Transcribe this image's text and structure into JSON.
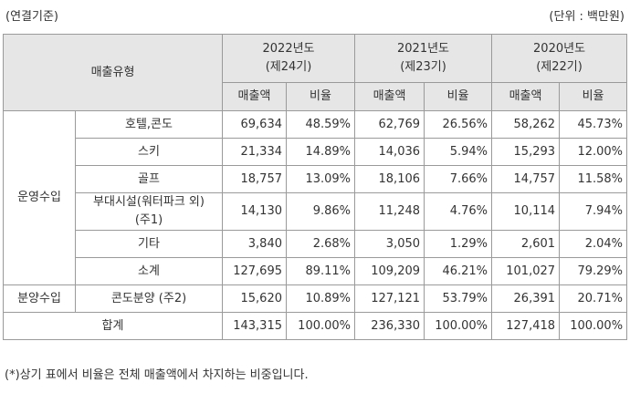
{
  "header": {
    "basis": "(연결기준)",
    "unit": "(단위 : 백만원)"
  },
  "table": {
    "type_label": "매출유형",
    "years": [
      {
        "year": "2022년도",
        "period": "(제24기)",
        "columns": [
          "매출액",
          "비율"
        ]
      },
      {
        "year": "2021년도",
        "period": "(제23기)",
        "columns": [
          "매출액",
          "비율"
        ]
      },
      {
        "year": "2020년도",
        "period": "(제22기)",
        "columns": [
          "매출액",
          "비율"
        ]
      }
    ],
    "groups": [
      {
        "name": "운영수입",
        "rows": [
          {
            "item": "호텔,콘도",
            "cells": [
              "69,634",
              "48.59%",
              "62,769",
              "26.56%",
              "58,262",
              "45.73%"
            ]
          },
          {
            "item": "스키",
            "cells": [
              "21,334",
              "14.89%",
              "14,036",
              "5.94%",
              "15,293",
              "12.00%"
            ]
          },
          {
            "item": "골프",
            "cells": [
              "18,757",
              "13.09%",
              "18,106",
              "7.66%",
              "14,757",
              "11.58%"
            ]
          },
          {
            "item": "부대시설(워터파크 외) (주1)",
            "cells": [
              "14,130",
              "9.86%",
              "11,248",
              "4.76%",
              "10,114",
              "7.94%"
            ]
          },
          {
            "item": "기타",
            "cells": [
              "3,840",
              "2.68%",
              "3,050",
              "1.29%",
              "2,601",
              "2.04%"
            ]
          },
          {
            "item": "소계",
            "cells": [
              "127,695",
              "89.11%",
              "109,209",
              "46.21%",
              "101,027",
              "79.29%"
            ]
          }
        ]
      },
      {
        "name": "분양수입",
        "rows": [
          {
            "item": "콘도분양 (주2)",
            "cells": [
              "15,620",
              "10.89%",
              "127,121",
              "53.79%",
              "26,391",
              "20.71%"
            ]
          }
        ]
      }
    ],
    "total": {
      "label": "합계",
      "cells": [
        "143,315",
        "100.00%",
        "236,330",
        "100.00%",
        "127,418",
        "100.00%"
      ]
    }
  },
  "footnote": "(*)상기 표에서 비율은 전체 매출액에서 차지하는 비중입니다."
}
